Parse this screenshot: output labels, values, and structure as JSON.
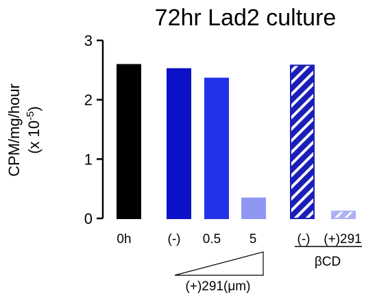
{
  "chart_data": {
    "type": "bar",
    "title": "72hr Lad2 culture",
    "ylabel_line1": "CPM/mg/hour",
    "ylabel_line2": "(x 10",
    "ylabel_exp": "-5",
    "ylabel_close": ")",
    "ylim": [
      0,
      3
    ],
    "yticks": [
      "0",
      "1",
      "2",
      "3"
    ],
    "categories": [
      "0h",
      "(-)",
      "0.5",
      "5",
      "(-)",
      "(+)291"
    ],
    "values": [
      2.59,
      2.52,
      2.36,
      0.34,
      2.58,
      0.12
    ],
    "colors": [
      "#000000",
      "#0b12c8",
      "#2232e6",
      "#8f96f2",
      "#1a1fb8",
      "#aab1f4"
    ],
    "hatched": [
      false,
      false,
      false,
      false,
      true,
      true
    ],
    "group_labels": {
      "treatment": "(+)291(μm)",
      "cyclodextrin": "βCD"
    }
  }
}
